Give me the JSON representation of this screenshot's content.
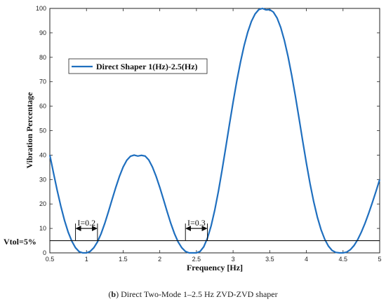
{
  "caption": {
    "letter": "b",
    "text": " Direct Two-Mode 1–2.5 Hz ZVD-ZVD shaper"
  },
  "chart_data": {
    "type": "line",
    "xlabel": "Frequency [Hz]",
    "ylabel": "Vibration Percentage",
    "xlim": [
      0.5,
      5
    ],
    "ylim": [
      0,
      100
    ],
    "xticks": [
      "0.5",
      "1",
      "1.5",
      "2",
      "2.5",
      "3",
      "3.5",
      "4",
      "4.5",
      "5"
    ],
    "yticks": [
      "0",
      "10",
      "20",
      "30",
      "40",
      "50",
      "60",
      "70",
      "80",
      "90",
      "100"
    ],
    "grid": false,
    "legend_position": "upper-left",
    "series": [
      {
        "name": "Direct Shaper 1(Hz)-2.5(Hz)",
        "color": "#1f6fbf",
        "x": [
          0.5,
          0.55,
          0.6,
          0.65,
          0.7,
          0.75,
          0.8,
          0.85,
          0.9,
          0.95,
          1.0,
          1.05,
          1.1,
          1.15,
          1.2,
          1.25,
          1.3,
          1.35,
          1.4,
          1.45,
          1.5,
          1.55,
          1.6,
          1.65,
          1.7,
          1.75,
          1.8,
          1.85,
          1.9,
          1.95,
          2.0,
          2.05,
          2.1,
          2.15,
          2.2,
          2.25,
          2.3,
          2.35,
          2.4,
          2.45,
          2.5,
          2.55,
          2.6,
          2.65,
          2.7,
          2.75,
          2.8,
          2.85,
          2.9,
          2.95,
          3.0,
          3.05,
          3.1,
          3.15,
          3.2,
          3.25,
          3.3,
          3.35,
          3.4,
          3.45,
          3.5,
          3.55,
          3.6,
          3.65,
          3.7,
          3.75,
          3.8,
          3.85,
          3.9,
          3.95,
          4.0,
          4.05,
          4.1,
          4.15,
          4.2,
          4.25,
          4.3,
          4.35,
          4.4,
          4.45,
          4.5,
          4.55,
          4.6,
          4.65,
          4.7,
          4.75,
          4.8,
          4.85,
          4.9,
          4.95,
          5.0
        ],
        "y": [
          40.0,
          32.7,
          25.6,
          19.1,
          13.3,
          8.5,
          4.8,
          2.1,
          0.5,
          0.0,
          0.0,
          0.6,
          2.1,
          4.5,
          7.9,
          12.1,
          16.9,
          21.9,
          26.8,
          31.3,
          35.1,
          37.9,
          39.5,
          40.0,
          39.6,
          39.9,
          39.6,
          38.0,
          35.1,
          31.3,
          26.8,
          21.9,
          16.9,
          12.1,
          7.9,
          4.5,
          2.1,
          0.6,
          0.0,
          0.0,
          0.0,
          0.6,
          2.5,
          6.0,
          11.0,
          17.5,
          25.2,
          33.9,
          43.1,
          52.5,
          61.6,
          70.2,
          77.9,
          84.7,
          90.3,
          94.7,
          97.7,
          99.5,
          100.0,
          99.4,
          99.5,
          98.5,
          96.1,
          92.2,
          86.9,
          80.3,
          72.6,
          64.1,
          55.0,
          45.7,
          36.7,
          28.3,
          20.9,
          14.6,
          9.5,
          5.6,
          2.8,
          1.0,
          0.2,
          0.0,
          0.0,
          0.3,
          1.3,
          3.0,
          5.4,
          8.5,
          12.1,
          16.2,
          20.6,
          25.2,
          30.0
        ]
      }
    ],
    "threshold": {
      "label": "Vtol=5%",
      "value": 5
    },
    "annotations": [
      {
        "label": "I=0.2",
        "x_start": 0.85,
        "x_end": 1.15,
        "y": 10
      },
      {
        "label": "I=0.3",
        "x_start": 2.35,
        "x_end": 2.65,
        "y": 10
      }
    ]
  }
}
